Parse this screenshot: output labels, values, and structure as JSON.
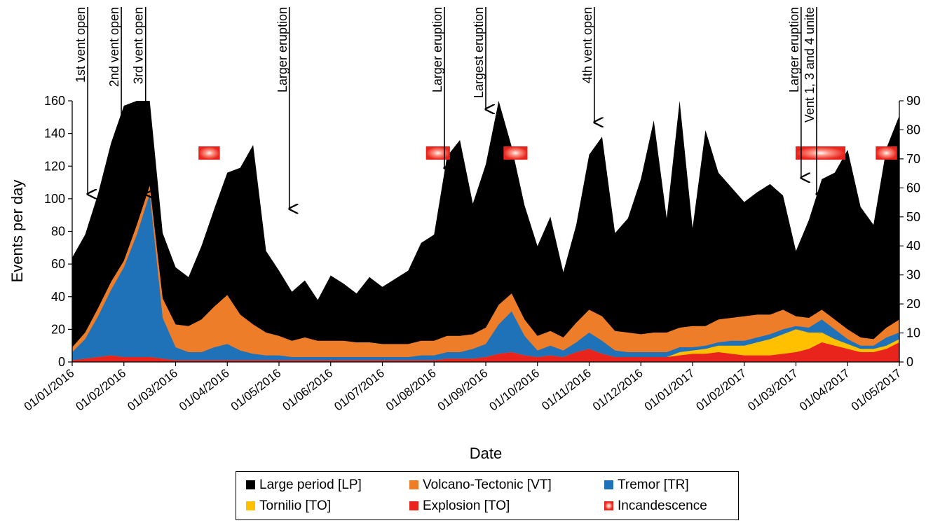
{
  "chart_data": {
    "type": "area",
    "title": "",
    "xlabel": "Date",
    "ylabel": "Events per day",
    "y_left_ticks": [
      "0",
      "20",
      "40",
      "60",
      "80",
      "100",
      "120",
      "140",
      "160"
    ],
    "y_right_ticks": [
      "0",
      "10",
      "20",
      "30",
      "40",
      "50",
      "60",
      "70",
      "80",
      "90"
    ],
    "ylim_left": [
      0,
      160
    ],
    "ylim_right": [
      0,
      90
    ],
    "x_ticks": [
      "01/01/2016",
      "01/02/2016",
      "01/03/2016",
      "01/04/2016",
      "01/05/2016",
      "01/06/2016",
      "01/07/2016",
      "01/08/2016",
      "01/09/2016",
      "01/10/2016",
      "01/11/2016",
      "01/12/2016",
      "01/01/2017",
      "01/02/2017",
      "01/03/2017",
      "01/04/2017",
      "01/05/2017"
    ],
    "x_month_index": [
      0,
      1,
      2,
      3,
      4,
      5,
      6,
      7,
      8,
      9,
      10,
      11,
      12,
      13,
      14,
      15,
      16
    ],
    "stacked": true,
    "series": [
      {
        "name": "Large period [LP]",
        "color": "#000000",
        "x": [
          0,
          0.25,
          0.5,
          0.75,
          1,
          1.25,
          1.5,
          1.75,
          2,
          2.25,
          2.5,
          2.75,
          3,
          3.25,
          3.5,
          3.75,
          4,
          4.25,
          4.5,
          4.75,
          5,
          5.25,
          5.5,
          5.75,
          6,
          6.25,
          6.5,
          6.75,
          7,
          7.25,
          7.5,
          7.75,
          8,
          8.25,
          8.5,
          8.75,
          9,
          9.25,
          9.5,
          9.75,
          10,
          10.25,
          10.5,
          10.75,
          11,
          11.25,
          11.5,
          11.75,
          12,
          12.25,
          12.5,
          12.75,
          13,
          13.25,
          13.5,
          13.75,
          14,
          14.25,
          14.5,
          14.75,
          15,
          15.25,
          15.5,
          15.75,
          16
        ],
        "values": [
          55,
          60,
          70,
          85,
          95,
          110,
          105,
          40,
          35,
          30,
          45,
          60,
          75,
          90,
          110,
          50,
          40,
          30,
          35,
          25,
          40,
          35,
          30,
          40,
          35,
          40,
          45,
          60,
          65,
          110,
          120,
          80,
          100,
          130,
          90,
          70,
          55,
          70,
          40,
          60,
          95,
          110,
          60,
          70,
          95,
          130,
          70,
          140,
          60,
          120,
          90,
          80,
          70,
          75,
          80,
          70,
          40,
          60,
          80,
          90,
          110,
          80,
          70,
          110,
          125
        ]
      },
      {
        "name": "Volcano-Tectonic [VT]",
        "color": "#ee7d2a",
        "x": [
          0,
          0.25,
          0.5,
          0.75,
          1,
          1.25,
          1.5,
          1.75,
          2,
          2.25,
          2.5,
          2.75,
          3,
          3.25,
          3.5,
          3.75,
          4,
          4.25,
          4.5,
          4.75,
          5,
          5.25,
          5.5,
          5.75,
          6,
          6.25,
          6.5,
          6.75,
          7,
          7.25,
          7.5,
          7.75,
          8,
          8.25,
          8.5,
          8.75,
          9,
          9.25,
          9.5,
          9.75,
          10,
          10.25,
          10.5,
          10.75,
          11,
          11.25,
          11.5,
          11.75,
          12,
          12.25,
          12.5,
          12.75,
          13,
          13.25,
          13.5,
          13.75,
          14,
          14.25,
          14.5,
          14.75,
          15,
          15.25,
          15.5,
          15.75,
          16
        ],
        "values": [
          3,
          4,
          5,
          5,
          4,
          6,
          5,
          12,
          14,
          16,
          20,
          25,
          30,
          22,
          18,
          14,
          12,
          10,
          12,
          10,
          10,
          10,
          9,
          9,
          8,
          8,
          8,
          9,
          9,
          10,
          10,
          9,
          10,
          12,
          11,
          10,
          9,
          9,
          8,
          12,
          14,
          15,
          12,
          12,
          11,
          12,
          12,
          12,
          13,
          12,
          14,
          14,
          15,
          14,
          12,
          12,
          6,
          6,
          6,
          6,
          6,
          5,
          4,
          6,
          8
        ]
      },
      {
        "name": "Tremor [TR]",
        "color": "#1f72b8",
        "x": [
          0,
          0.25,
          0.5,
          0.75,
          1,
          1.25,
          1.5,
          1.75,
          2,
          2.25,
          2.5,
          2.75,
          3,
          3.25,
          3.5,
          3.75,
          4,
          4.25,
          4.5,
          4.75,
          5,
          5.25,
          5.5,
          5.75,
          6,
          6.25,
          6.5,
          6.75,
          7,
          7.25,
          7.5,
          7.75,
          8,
          8.25,
          8.5,
          8.75,
          9,
          9.25,
          9.5,
          9.75,
          10,
          10.25,
          10.5,
          10.75,
          11,
          11.25,
          11.5,
          11.75,
          12,
          12.25,
          12.5,
          12.75,
          13,
          13.25,
          13.5,
          13.75,
          14,
          14.25,
          14.5,
          14.75,
          15,
          15.25,
          15.5,
          15.75,
          16
        ],
        "values": [
          5,
          12,
          25,
          40,
          55,
          75,
          100,
          25,
          8,
          5,
          5,
          8,
          10,
          6,
          4,
          3,
          3,
          2,
          2,
          2,
          2,
          2,
          2,
          2,
          2,
          2,
          2,
          3,
          3,
          4,
          4,
          6,
          8,
          18,
          25,
          12,
          4,
          6,
          4,
          6,
          10,
          8,
          4,
          3,
          3,
          3,
          3,
          3,
          2,
          2,
          2,
          3,
          3,
          3,
          3,
          3,
          2,
          3,
          8,
          6,
          3,
          2,
          2,
          5,
          4
        ]
      },
      {
        "name": "Tornilio [TO]",
        "color": "#ffc000",
        "x": [
          0,
          0.25,
          0.5,
          0.75,
          1,
          1.25,
          1.5,
          1.75,
          2,
          2.25,
          2.5,
          2.75,
          3,
          3.25,
          3.5,
          3.75,
          4,
          4.25,
          4.5,
          4.75,
          5,
          5.25,
          5.5,
          5.75,
          6,
          6.25,
          6.5,
          6.75,
          7,
          7.25,
          7.5,
          7.75,
          8,
          8.25,
          8.5,
          8.75,
          9,
          9.25,
          9.5,
          9.75,
          10,
          10.25,
          10.5,
          10.75,
          11,
          11.25,
          11.5,
          11.75,
          12,
          12.25,
          12.5,
          12.75,
          13,
          13.25,
          13.5,
          13.75,
          14,
          14.25,
          14.5,
          14.75,
          15,
          15.25,
          15.5,
          15.75,
          16
        ],
        "values": [
          0,
          0,
          0,
          0,
          0,
          0,
          0,
          0,
          0,
          0,
          0,
          0,
          0,
          0,
          0,
          0,
          0,
          0,
          0,
          0,
          0,
          0,
          0,
          0,
          0,
          0,
          0,
          0,
          0,
          0,
          0,
          0,
          0,
          0,
          0,
          0,
          0,
          0,
          0,
          0,
          0,
          0,
          0,
          0,
          0,
          0,
          0,
          2,
          2,
          3,
          4,
          5,
          6,
          8,
          10,
          12,
          14,
          10,
          6,
          4,
          3,
          2,
          2,
          2,
          2
        ]
      },
      {
        "name": "Explosion [TO]",
        "color": "#e8241c",
        "x": [
          0,
          0.25,
          0.5,
          0.75,
          1,
          1.25,
          1.5,
          1.75,
          2,
          2.25,
          2.5,
          2.75,
          3,
          3.25,
          3.5,
          3.75,
          4,
          4.25,
          4.5,
          4.75,
          5,
          5.25,
          5.5,
          5.75,
          6,
          6.25,
          6.5,
          6.75,
          7,
          7.25,
          7.5,
          7.75,
          8,
          8.25,
          8.5,
          8.75,
          9,
          9.25,
          9.5,
          9.75,
          10,
          10.25,
          10.5,
          10.75,
          11,
          11.25,
          11.5,
          11.75,
          12,
          12.25,
          12.5,
          12.75,
          13,
          13.25,
          13.5,
          13.75,
          14,
          14.25,
          14.5,
          14.75,
          15,
          15.25,
          15.5,
          15.75,
          16
        ],
        "values": [
          1,
          2,
          3,
          4,
          3,
          3,
          3,
          2,
          1,
          1,
          1,
          1,
          1,
          1,
          1,
          1,
          1,
          1,
          1,
          1,
          1,
          1,
          1,
          1,
          1,
          1,
          1,
          1,
          1,
          2,
          2,
          2,
          3,
          5,
          6,
          4,
          3,
          4,
          3,
          6,
          8,
          5,
          3,
          3,
          3,
          3,
          3,
          4,
          5,
          5,
          6,
          5,
          4,
          4,
          4,
          5,
          6,
          8,
          12,
          10,
          8,
          6,
          6,
          8,
          12
        ]
      }
    ],
    "incandescence": {
      "name": "Incandescence",
      "periods": [
        [
          2.45,
          2.85
        ],
        [
          6.85,
          7.3
        ],
        [
          8.35,
          8.8
        ],
        [
          14.0,
          14.95
        ],
        [
          15.55,
          15.95
        ]
      ],
      "level_left_axis": 128
    },
    "annotations": [
      {
        "text": "1st vent open",
        "x": 0.3,
        "arrow_to": 102
      },
      {
        "text": "2nd vent open",
        "x": 0.95,
        "arrow_to": 102
      },
      {
        "text": "3rd vent open",
        "x": 1.42,
        "arrow_to": 102
      },
      {
        "text": "Larger eruption",
        "x": 4.2,
        "arrow_to": 93
      },
      {
        "text": "Larger eruption",
        "x": 7.2,
        "arrow_to": 118
      },
      {
        "text": "Largest eruption",
        "x": 8.0,
        "arrow_to": 154
      },
      {
        "text": "4th vent open",
        "x": 10.1,
        "arrow_to": 146
      },
      {
        "text": "Larger eruption",
        "x": 14.1,
        "arrow_to": 112
      },
      {
        "text": "Vent 1, 3 and 4 unite",
        "x": 14.4,
        "arrow_to": 102
      }
    ]
  },
  "legend": {
    "items": [
      {
        "label": "Large period [LP]",
        "color": "#000000"
      },
      {
        "label": "Volcano-Tectonic [VT]",
        "color": "#ee7d2a"
      },
      {
        "label": "Tremor [TR]",
        "color": "#1f72b8"
      },
      {
        "label": "Tornilio [TO]",
        "color": "#ffc000"
      },
      {
        "label": "Explosion [TO]",
        "color": "#e8241c"
      },
      {
        "label": "Incandescence",
        "icon": "incandescence-icon"
      }
    ]
  }
}
